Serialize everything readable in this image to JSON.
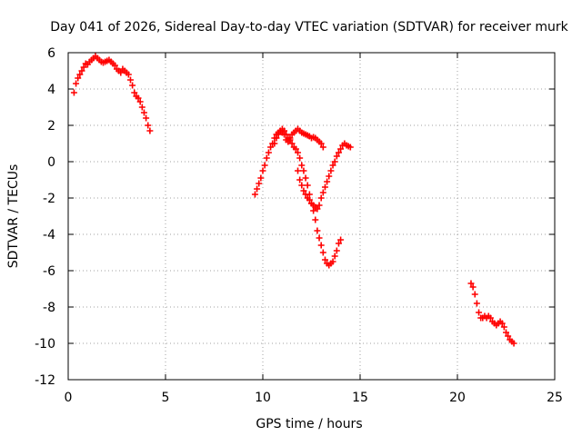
{
  "chart_data": {
    "type": "scatter",
    "title": "Day 041 of 2026, Sidereal Day-to-day VTEC variation (SDTVAR) for receiver murk",
    "xlabel": "GPS time / hours",
    "ylabel": "SDTVAR / TECUs",
    "xlim": [
      0,
      25
    ],
    "ylim": [
      -12,
      6
    ],
    "xticks": [
      "0",
      "5",
      "10",
      "15",
      "20",
      "25"
    ],
    "yticks": [
      "-12",
      "-10",
      "-8",
      "-6",
      "-4",
      "-2",
      "0",
      "2",
      "4",
      "6"
    ],
    "grid": true,
    "marker": "plus",
    "color": "#ff0000",
    "series": [
      {
        "x": [
          0.3,
          0.4,
          0.5,
          0.6,
          0.7,
          0.8,
          0.9,
          1.0,
          1.1,
          1.2,
          1.3,
          1.4,
          1.5,
          1.6,
          1.7,
          1.8,
          1.9,
          2.0,
          2.1,
          2.2,
          2.3,
          2.4,
          2.5,
          2.6,
          2.7,
          2.8,
          2.9,
          3.0,
          3.1,
          3.2,
          3.3,
          3.4,
          3.5,
          3.6,
          3.7,
          3.8,
          3.9,
          4.0,
          4.1,
          4.2
        ],
        "y": [
          3.8,
          4.3,
          4.6,
          4.8,
          5.0,
          5.2,
          5.4,
          5.35,
          5.5,
          5.6,
          5.7,
          5.8,
          5.7,
          5.6,
          5.5,
          5.45,
          5.5,
          5.55,
          5.6,
          5.5,
          5.4,
          5.3,
          5.1,
          5.0,
          4.9,
          5.1,
          5.0,
          4.9,
          4.8,
          4.5,
          4.2,
          3.8,
          3.6,
          3.5,
          3.3,
          3.0,
          2.7,
          2.4,
          2.0,
          1.7
        ]
      },
      {
        "x": [
          9.6,
          9.7,
          9.8,
          9.9,
          10.0,
          10.1,
          10.2,
          10.3,
          10.4,
          10.5,
          10.6,
          10.7,
          10.8,
          10.9,
          11.0,
          11.1,
          11.2,
          11.3,
          11.4,
          11.5,
          11.6,
          11.7,
          11.8,
          11.9,
          12.0,
          12.1,
          12.2,
          12.3,
          12.4,
          12.5,
          12.6,
          12.7,
          12.8,
          12.9,
          13.0,
          13.1
        ],
        "y": [
          -1.8,
          -1.5,
          -1.2,
          -0.9,
          -0.5,
          -0.2,
          0.2,
          0.5,
          0.8,
          1.0,
          1.3,
          1.5,
          1.6,
          1.7,
          1.6,
          1.5,
          1.2,
          1.1,
          1.3,
          1.5,
          1.6,
          1.7,
          1.8,
          1.7,
          1.6,
          1.55,
          1.5,
          1.45,
          1.4,
          1.3,
          1.35,
          1.3,
          1.2,
          1.1,
          1.0,
          0.8
        ]
      },
      {
        "x": [
          10.6,
          10.7,
          10.8,
          10.9,
          11.0,
          11.1,
          11.2,
          11.3,
          11.4,
          11.5,
          11.6,
          11.7,
          11.8,
          11.9,
          12.0,
          12.1,
          12.2,
          12.3,
          12.4,
          12.5,
          12.6,
          12.7,
          12.8,
          12.9,
          13.0,
          13.1,
          13.2,
          13.3,
          13.4,
          13.5,
          13.6,
          13.7,
          13.8,
          13.9,
          14.0
        ],
        "y": [
          1.0,
          1.3,
          1.5,
          1.7,
          1.8,
          1.7,
          1.5,
          1.3,
          1.2,
          1.0,
          0.8,
          0.7,
          0.5,
          0.2,
          -0.2,
          -0.5,
          -0.9,
          -1.3,
          -1.8,
          -2.3,
          -2.7,
          -3.2,
          -3.8,
          -4.2,
          -4.6,
          -5.0,
          -5.4,
          -5.6,
          -5.7,
          -5.6,
          -5.5,
          -5.2,
          -4.9,
          -4.5,
          -4.3
        ]
      },
      {
        "x": [
          11.8,
          11.9,
          12.0,
          12.1,
          12.2,
          12.3,
          12.4,
          12.5,
          12.6,
          12.7,
          12.8,
          12.9,
          13.0,
          13.1,
          13.2,
          13.3,
          13.4,
          13.5,
          13.6,
          13.7,
          13.8,
          13.9,
          14.0,
          14.1,
          14.2,
          14.3,
          14.4,
          14.5
        ],
        "y": [
          -0.5,
          -1.0,
          -1.3,
          -1.6,
          -1.8,
          -2.0,
          -2.1,
          -2.3,
          -2.4,
          -2.5,
          -2.6,
          -2.4,
          -2.0,
          -1.7,
          -1.4,
          -1.1,
          -0.8,
          -0.5,
          -0.2,
          0.0,
          0.3,
          0.5,
          0.7,
          0.9,
          1.0,
          0.9,
          0.85,
          0.8
        ]
      },
      {
        "x": [
          20.7,
          20.8,
          20.9,
          21.0,
          21.1,
          21.2,
          21.3,
          21.4,
          21.5,
          21.6,
          21.7,
          21.8,
          21.9,
          22.0,
          22.1,
          22.2,
          22.3,
          22.4,
          22.5,
          22.6,
          22.7,
          22.8,
          22.9
        ],
        "y": [
          -6.7,
          -6.9,
          -7.3,
          -7.8,
          -8.3,
          -8.6,
          -8.6,
          -8.5,
          -8.6,
          -8.5,
          -8.6,
          -8.8,
          -8.9,
          -9.0,
          -8.9,
          -8.8,
          -8.9,
          -9.1,
          -9.4,
          -9.6,
          -9.8,
          -9.9,
          -10.0
        ]
      }
    ]
  }
}
